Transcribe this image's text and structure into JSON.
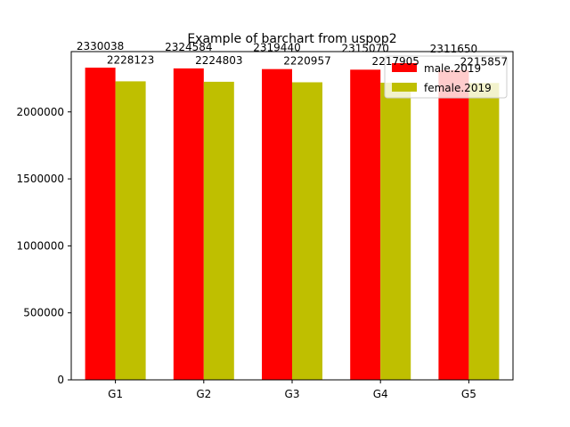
{
  "chart_data": {
    "type": "bar",
    "title": "Example of barchart from uspop2",
    "xlabel": "",
    "ylabel": "",
    "categories": [
      "G1",
      "G2",
      "G3",
      "G4",
      "G5"
    ],
    "ylim": [
      0,
      2450000
    ],
    "yticks": [
      0,
      500000,
      1000000,
      1500000,
      2000000
    ],
    "ytick_labels": [
      "0",
      "500000",
      "1000000",
      "1500000",
      "2000000"
    ],
    "legend_position": "top-right",
    "grid": false,
    "series": [
      {
        "name": "male.2019",
        "color": "#ff0000",
        "values": [
          2330038,
          2324584,
          2319440,
          2315070,
          2311650
        ],
        "labels": [
          "2330038",
          "2324584",
          "2319440",
          "2315070",
          "2311650"
        ]
      },
      {
        "name": "female.2019",
        "color": "#bfbf00",
        "values": [
          2228123,
          2224803,
          2220957,
          2217905,
          2215857
        ],
        "labels": [
          "2228123",
          "2224803",
          "2220957",
          "2217905",
          "2215857"
        ]
      }
    ]
  }
}
